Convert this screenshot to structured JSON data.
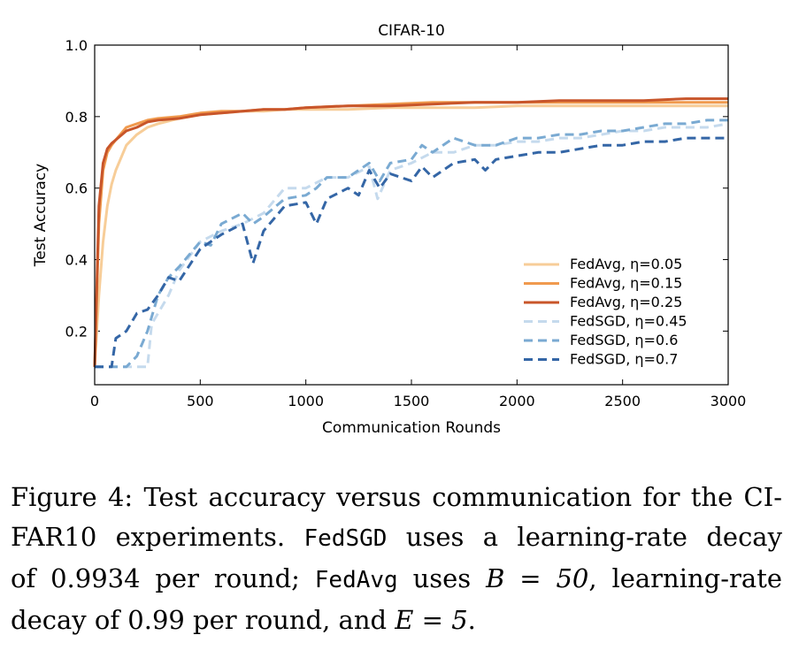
{
  "chart_data": {
    "type": "line",
    "title": "CIFAR-10",
    "xlabel": "Communication Rounds",
    "ylabel": "Test Accuracy",
    "xlim": [
      0,
      3000
    ],
    "ylim": [
      0.05,
      1.0
    ],
    "xticks": [
      "0",
      "500",
      "1000",
      "1500",
      "2000",
      "2500",
      "3000"
    ],
    "yticks": [
      "0.2",
      "0.4",
      "0.6",
      "0.8",
      "1.0"
    ],
    "legend_position": "lower-right",
    "series": [
      {
        "name": "FedAvg, η=0.05",
        "color": "#f7cd98",
        "dash": false,
        "x": [
          0,
          20,
          40,
          60,
          80,
          100,
          150,
          200,
          250,
          300,
          400,
          500,
          600,
          700,
          800,
          900,
          1000,
          1200,
          1400,
          1600,
          1800,
          2000,
          2200,
          2400,
          2600,
          2800,
          3000
        ],
        "y": [
          0.1,
          0.3,
          0.45,
          0.55,
          0.61,
          0.65,
          0.72,
          0.75,
          0.77,
          0.78,
          0.795,
          0.805,
          0.81,
          0.815,
          0.815,
          0.82,
          0.82,
          0.82,
          0.825,
          0.825,
          0.825,
          0.83,
          0.83,
          0.83,
          0.83,
          0.83,
          0.83
        ]
      },
      {
        "name": "FedAvg, η=0.15",
        "color": "#f09a4e",
        "dash": false,
        "x": [
          0,
          20,
          40,
          60,
          80,
          100,
          150,
          200,
          250,
          300,
          400,
          500,
          600,
          700,
          800,
          900,
          1000,
          1200,
          1400,
          1600,
          1800,
          2000,
          2200,
          2400,
          2600,
          2800,
          3000
        ],
        "y": [
          0.1,
          0.5,
          0.65,
          0.7,
          0.72,
          0.735,
          0.77,
          0.78,
          0.79,
          0.795,
          0.8,
          0.81,
          0.815,
          0.815,
          0.82,
          0.82,
          0.825,
          0.83,
          0.835,
          0.84,
          0.84,
          0.84,
          0.84,
          0.84,
          0.84,
          0.84,
          0.84
        ]
      },
      {
        "name": "FedAvg, η=0.25",
        "color": "#c8552a",
        "dash": false,
        "x": [
          0,
          20,
          40,
          60,
          80,
          100,
          150,
          200,
          250,
          300,
          400,
          500,
          600,
          700,
          800,
          900,
          1000,
          1200,
          1400,
          1600,
          1800,
          2000,
          2200,
          2400,
          2600,
          2800,
          3000
        ],
        "y": [
          0.1,
          0.55,
          0.67,
          0.71,
          0.725,
          0.735,
          0.76,
          0.77,
          0.785,
          0.79,
          0.795,
          0.805,
          0.81,
          0.815,
          0.82,
          0.82,
          0.825,
          0.83,
          0.83,
          0.835,
          0.84,
          0.84,
          0.845,
          0.845,
          0.845,
          0.85,
          0.85
        ]
      },
      {
        "name": "FedSGD, η=0.45",
        "color": "#c5daed",
        "dash": true,
        "x": [
          0,
          100,
          150,
          200,
          250,
          270,
          300,
          350,
          400,
          500,
          600,
          700,
          800,
          900,
          1000,
          1100,
          1200,
          1300,
          1340,
          1400,
          1500,
          1600,
          1700,
          1800,
          1900,
          2000,
          2100,
          2200,
          2300,
          2400,
          2500,
          2600,
          2700,
          2800,
          2900,
          3000
        ],
        "y": [
          0.1,
          0.1,
          0.1,
          0.1,
          0.1,
          0.22,
          0.25,
          0.3,
          0.37,
          0.45,
          0.48,
          0.5,
          0.53,
          0.6,
          0.6,
          0.63,
          0.63,
          0.66,
          0.57,
          0.65,
          0.67,
          0.7,
          0.7,
          0.72,
          0.72,
          0.73,
          0.73,
          0.74,
          0.74,
          0.75,
          0.76,
          0.76,
          0.77,
          0.77,
          0.77,
          0.78
        ]
      },
      {
        "name": "FedSGD, η=0.6",
        "color": "#7aaad2",
        "dash": true,
        "x": [
          0,
          100,
          150,
          200,
          250,
          300,
          350,
          400,
          500,
          550,
          600,
          700,
          750,
          800,
          900,
          1000,
          1050,
          1100,
          1200,
          1300,
          1350,
          1400,
          1500,
          1550,
          1600,
          1700,
          1800,
          1900,
          2000,
          2100,
          2200,
          2300,
          2400,
          2500,
          2600,
          2700,
          2800,
          2900,
          3000
        ],
        "y": [
          0.1,
          0.1,
          0.1,
          0.13,
          0.2,
          0.3,
          0.35,
          0.38,
          0.45,
          0.44,
          0.5,
          0.53,
          0.5,
          0.52,
          0.57,
          0.58,
          0.6,
          0.63,
          0.63,
          0.67,
          0.62,
          0.67,
          0.68,
          0.72,
          0.7,
          0.74,
          0.72,
          0.72,
          0.74,
          0.74,
          0.75,
          0.75,
          0.76,
          0.76,
          0.77,
          0.78,
          0.78,
          0.79,
          0.79
        ]
      },
      {
        "name": "FedSGD, η=0.7",
        "color": "#3466a6",
        "dash": true,
        "x": [
          0,
          80,
          100,
          150,
          200,
          250,
          300,
          350,
          400,
          500,
          600,
          700,
          750,
          800,
          900,
          1000,
          1050,
          1100,
          1200,
          1250,
          1300,
          1350,
          1400,
          1500,
          1550,
          1600,
          1700,
          1800,
          1850,
          1900,
          2000,
          2100,
          2200,
          2300,
          2400,
          2500,
          2600,
          2700,
          2800,
          2900,
          3000
        ],
        "y": [
          0.1,
          0.1,
          0.18,
          0.2,
          0.25,
          0.26,
          0.3,
          0.35,
          0.34,
          0.43,
          0.47,
          0.5,
          0.39,
          0.48,
          0.55,
          0.56,
          0.5,
          0.57,
          0.6,
          0.58,
          0.65,
          0.6,
          0.64,
          0.62,
          0.66,
          0.63,
          0.67,
          0.68,
          0.65,
          0.68,
          0.69,
          0.7,
          0.7,
          0.71,
          0.72,
          0.72,
          0.73,
          0.73,
          0.74,
          0.74,
          0.74
        ]
      }
    ]
  },
  "caption": {
    "line1": "Figure 4: Test accuracy versus communication for the CI-",
    "line2_a": "FAR10 experiments. ",
    "line2_mono": "FedSGD",
    "line2_b": " uses a learning-rate decay",
    "line3_a": "of 0.9934 per round; ",
    "line3_mono": "FedAvg",
    "line3_b": " uses ",
    "line3_math": "B = 50",
    "line3_c": ", learning-rate",
    "line4_a": "decay of 0.99 per round, and ",
    "line4_math": "E = 5",
    "line4_b": "."
  }
}
